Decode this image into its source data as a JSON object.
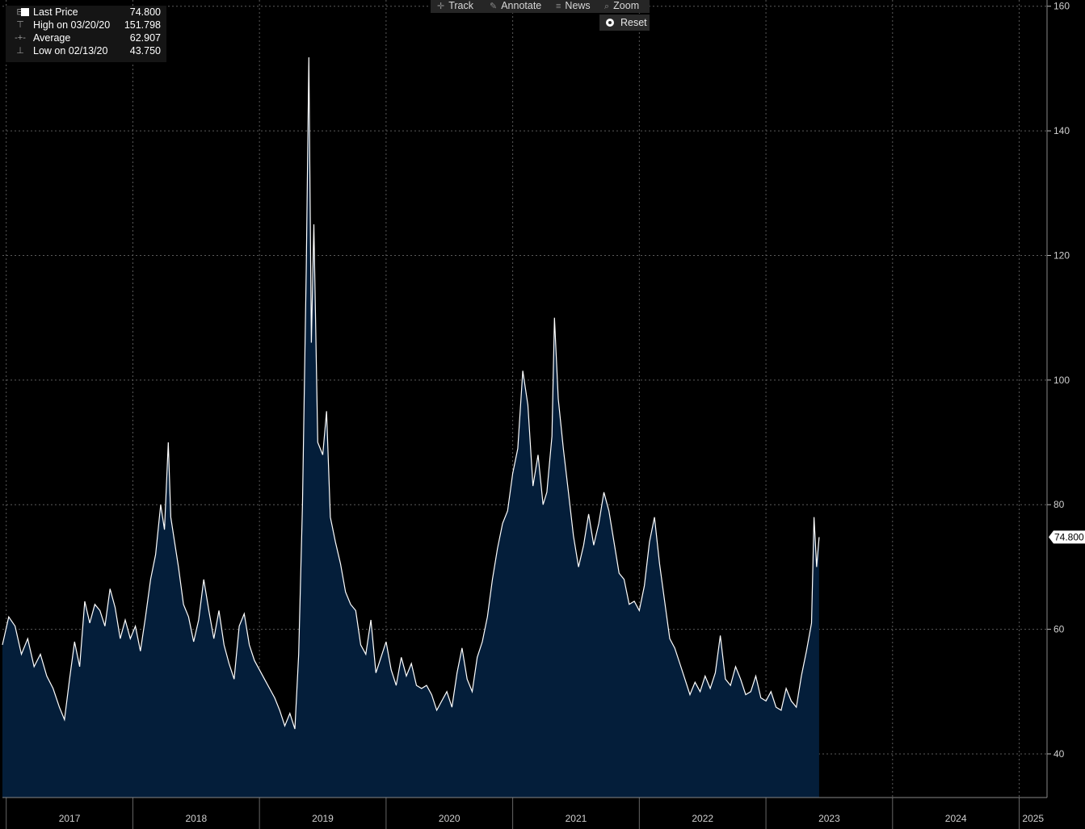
{
  "legend": {
    "last_price": {
      "label": "Last Price",
      "value": "74.800"
    },
    "high": {
      "label": "High on 03/20/20",
      "value": "151.798"
    },
    "average": {
      "label": "Average",
      "value": "62.907"
    },
    "low": {
      "label": "Low on 02/13/20",
      "value": "43.750"
    }
  },
  "toolbar": {
    "track": "Track",
    "annotate": "Annotate",
    "news": "News",
    "zoom": "Zoom",
    "reset": "Reset"
  },
  "colors": {
    "background": "#000000",
    "area_fill": "#041e3a",
    "line": "#ffffff",
    "grid": "#5a5a5a",
    "axis_text": "#cfcfcf"
  },
  "chart_data": {
    "type": "area",
    "title": "",
    "xlabel": "",
    "ylabel": "",
    "ylim": [
      33,
      161
    ],
    "xlim": [
      2016.97,
      2025.22
    ],
    "y_ticks": [
      40,
      60,
      80,
      100,
      120,
      140,
      160
    ],
    "x_tick_labels": [
      "2017",
      "2018",
      "2019",
      "2020",
      "2021",
      "2022",
      "2023",
      "2024",
      "2025"
    ],
    "grid": true,
    "last_value_label": "74.800",
    "series": [
      {
        "name": "Last Price",
        "points": [
          [
            2016.97,
            57.5
          ],
          [
            2017.02,
            62.0
          ],
          [
            2017.07,
            60.5
          ],
          [
            2017.12,
            56.0
          ],
          [
            2017.17,
            58.5
          ],
          [
            2017.22,
            54.0
          ],
          [
            2017.27,
            56.0
          ],
          [
            2017.32,
            52.5
          ],
          [
            2017.37,
            50.5
          ],
          [
            2017.42,
            47.5
          ],
          [
            2017.46,
            45.5
          ],
          [
            2017.5,
            52.0
          ],
          [
            2017.54,
            58.0
          ],
          [
            2017.58,
            54.0
          ],
          [
            2017.62,
            64.5
          ],
          [
            2017.66,
            61.0
          ],
          [
            2017.7,
            64.0
          ],
          [
            2017.74,
            63.0
          ],
          [
            2017.78,
            60.5
          ],
          [
            2017.82,
            66.5
          ],
          [
            2017.86,
            63.5
          ],
          [
            2017.9,
            58.5
          ],
          [
            2017.94,
            61.5
          ],
          [
            2017.98,
            58.5
          ],
          [
            2018.02,
            60.5
          ],
          [
            2018.06,
            56.5
          ],
          [
            2018.1,
            62.0
          ],
          [
            2018.14,
            68.0
          ],
          [
            2018.18,
            72.0
          ],
          [
            2018.22,
            80.0
          ],
          [
            2018.25,
            76.0
          ],
          [
            2018.28,
            90.0
          ],
          [
            2018.3,
            78.0
          ],
          [
            2018.33,
            74.0
          ],
          [
            2018.36,
            70.0
          ],
          [
            2018.4,
            64.0
          ],
          [
            2018.44,
            62.0
          ],
          [
            2018.48,
            58.0
          ],
          [
            2018.52,
            61.5
          ],
          [
            2018.56,
            68.0
          ],
          [
            2018.6,
            63.0
          ],
          [
            2018.64,
            58.5
          ],
          [
            2018.68,
            63.0
          ],
          [
            2018.72,
            57.5
          ],
          [
            2018.76,
            54.5
          ],
          [
            2018.8,
            52.0
          ],
          [
            2018.84,
            60.5
          ],
          [
            2018.88,
            62.5
          ],
          [
            2018.92,
            57.5
          ],
          [
            2018.96,
            55.0
          ],
          [
            2019.0,
            53.5
          ],
          [
            2019.04,
            52.0
          ],
          [
            2019.08,
            50.5
          ],
          [
            2019.12,
            49.0
          ],
          [
            2019.16,
            47.0
          ],
          [
            2019.2,
            44.5
          ],
          [
            2019.24,
            46.5
          ],
          [
            2019.28,
            44.0
          ],
          [
            2019.31,
            56.0
          ],
          [
            2019.34,
            80.0
          ],
          [
            2019.37,
            118.0
          ],
          [
            2019.39,
            151.8
          ],
          [
            2019.41,
            106.0
          ],
          [
            2019.43,
            125.0
          ],
          [
            2019.46,
            90.0
          ],
          [
            2019.5,
            88.0
          ],
          [
            2019.53,
            95.0
          ],
          [
            2019.56,
            78.0
          ],
          [
            2019.6,
            74.0
          ],
          [
            2019.64,
            70.5
          ],
          [
            2019.68,
            66.0
          ],
          [
            2019.72,
            64.0
          ],
          [
            2019.76,
            63.0
          ],
          [
            2019.8,
            57.5
          ],
          [
            2019.84,
            56.0
          ],
          [
            2019.88,
            61.5
          ],
          [
            2019.92,
            53.0
          ],
          [
            2019.96,
            55.5
          ],
          [
            2020.0,
            58.0
          ],
          [
            2020.04,
            53.5
          ],
          [
            2020.08,
            51.0
          ],
          [
            2020.12,
            55.5
          ],
          [
            2020.16,
            52.5
          ],
          [
            2020.2,
            54.5
          ],
          [
            2020.24,
            51.0
          ],
          [
            2020.28,
            50.5
          ],
          [
            2020.32,
            51.0
          ],
          [
            2020.36,
            49.5
          ],
          [
            2020.4,
            47.0
          ],
          [
            2020.44,
            48.5
          ],
          [
            2020.48,
            50.0
          ],
          [
            2020.52,
            47.5
          ],
          [
            2020.56,
            53.0
          ],
          [
            2020.6,
            57.0
          ],
          [
            2020.64,
            52.0
          ],
          [
            2020.68,
            50.0
          ],
          [
            2020.72,
            55.5
          ],
          [
            2020.76,
            58.0
          ],
          [
            2020.8,
            62.0
          ],
          [
            2020.84,
            68.0
          ],
          [
            2020.88,
            73.0
          ],
          [
            2020.92,
            77.0
          ],
          [
            2020.96,
            79.0
          ],
          [
            2021.0,
            85.0
          ],
          [
            2021.04,
            89.0
          ],
          [
            2021.08,
            101.5
          ],
          [
            2021.12,
            96.0
          ],
          [
            2021.16,
            83.0
          ],
          [
            2021.2,
            88.0
          ],
          [
            2021.24,
            80.0
          ],
          [
            2021.27,
            82.0
          ],
          [
            2021.31,
            91.0
          ],
          [
            2021.33,
            110.0
          ],
          [
            2021.36,
            97.0
          ],
          [
            2021.4,
            89.0
          ],
          [
            2021.44,
            82.0
          ],
          [
            2021.48,
            75.0
          ],
          [
            2021.52,
            70.0
          ],
          [
            2021.56,
            73.5
          ],
          [
            2021.6,
            78.5
          ],
          [
            2021.64,
            73.5
          ],
          [
            2021.68,
            77.0
          ],
          [
            2021.72,
            82.0
          ],
          [
            2021.76,
            79.0
          ],
          [
            2021.8,
            74.0
          ],
          [
            2021.84,
            69.0
          ],
          [
            2021.88,
            68.0
          ],
          [
            2021.92,
            64.0
          ],
          [
            2021.96,
            64.5
          ],
          [
            2022.0,
            63.0
          ],
          [
            2022.04,
            67.0
          ],
          [
            2022.08,
            74.0
          ],
          [
            2022.12,
            78.0
          ],
          [
            2022.16,
            70.5
          ],
          [
            2022.2,
            64.5
          ],
          [
            2022.24,
            58.5
          ],
          [
            2022.28,
            57.0
          ],
          [
            2022.32,
            54.5
          ],
          [
            2022.36,
            52.0
          ],
          [
            2022.4,
            49.5
          ],
          [
            2022.44,
            51.5
          ],
          [
            2022.48,
            50.0
          ],
          [
            2022.52,
            52.5
          ],
          [
            2022.56,
            50.5
          ],
          [
            2022.6,
            53.0
          ],
          [
            2022.64,
            59.0
          ],
          [
            2022.68,
            52.0
          ],
          [
            2022.72,
            51.0
          ],
          [
            2022.76,
            54.0
          ],
          [
            2022.8,
            52.0
          ],
          [
            2022.84,
            49.5
          ],
          [
            2022.88,
            50.0
          ],
          [
            2022.92,
            52.5
          ],
          [
            2022.96,
            49.0
          ],
          [
            2023.0,
            48.5
          ],
          [
            2023.04,
            50.0
          ],
          [
            2023.08,
            47.5
          ],
          [
            2023.12,
            47.0
          ],
          [
            2023.16,
            50.5
          ],
          [
            2023.2,
            48.5
          ],
          [
            2023.24,
            47.5
          ],
          [
            2023.28,
            52.5
          ],
          [
            2023.32,
            56.5
          ],
          [
            2023.36,
            61.0
          ],
          [
            2023.38,
            78.0
          ],
          [
            2023.4,
            70.0
          ],
          [
            2023.42,
            74.8
          ]
        ]
      }
    ]
  }
}
